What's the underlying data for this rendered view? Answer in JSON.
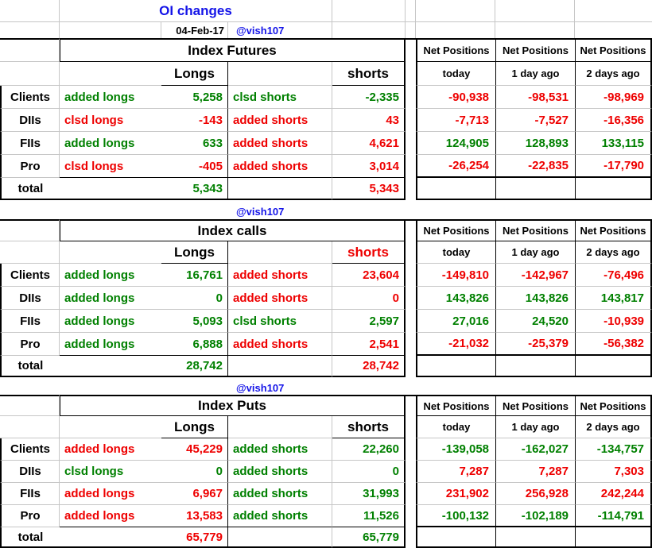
{
  "title": "OI changes",
  "date": "04-Feb-17",
  "handle": "@vish107",
  "colors": {
    "green": "#008000",
    "red": "#ee0000",
    "blue": "#1414e8",
    "black": "#000000"
  },
  "net": {
    "header": "Net Positions",
    "cols": [
      "today",
      "1 day ago",
      "2 days ago"
    ]
  },
  "sections": [
    {
      "title": "Index Futures",
      "longs_header": "Longs",
      "shorts_header": "shorts",
      "shorts_header_color": "black",
      "total_label": "total",
      "total_longs": "5,343",
      "total_longs_color": "green",
      "total_shorts": "5,343",
      "total_shorts_color": "red",
      "rows": [
        {
          "label": "Clients",
          "long_action": "added longs",
          "long_color": "green",
          "long_value": "5,258",
          "short_action": "clsd shorts",
          "short_color": "green",
          "short_value": "-2,335",
          "net": [
            "-90,938",
            "-98,531",
            "-98,969"
          ],
          "net_colors": [
            "red",
            "red",
            "red"
          ]
        },
        {
          "label": "DIIs",
          "long_action": "clsd longs",
          "long_color": "red",
          "long_value": "-143",
          "short_action": "added shorts",
          "short_color": "red",
          "short_value": "43",
          "net": [
            "-7,713",
            "-7,527",
            "-16,356"
          ],
          "net_colors": [
            "red",
            "red",
            "red"
          ]
        },
        {
          "label": "FIIs",
          "long_action": "added longs",
          "long_color": "green",
          "long_value": "633",
          "short_action": "added shorts",
          "short_color": "red",
          "short_value": "4,621",
          "net": [
            "124,905",
            "128,893",
            "133,115"
          ],
          "net_colors": [
            "green",
            "green",
            "green"
          ]
        },
        {
          "label": "Pro",
          "long_action": "clsd longs",
          "long_color": "red",
          "long_value": "-405",
          "short_action": "added shorts",
          "short_color": "red",
          "short_value": "3,014",
          "net": [
            "-26,254",
            "-22,835",
            "-17,790"
          ],
          "net_colors": [
            "red",
            "red",
            "red"
          ]
        }
      ]
    },
    {
      "title": "Index calls",
      "longs_header": "Longs",
      "shorts_header": "shorts",
      "shorts_header_color": "red",
      "total_label": "total",
      "total_longs": "28,742",
      "total_longs_color": "green",
      "total_shorts": "28,742",
      "total_shorts_color": "red",
      "rows": [
        {
          "label": "Clients",
          "long_action": "added longs",
          "long_color": "green",
          "long_value": "16,761",
          "short_action": "added shorts",
          "short_color": "red",
          "short_value": "23,604",
          "net": [
            "-149,810",
            "-142,967",
            "-76,496"
          ],
          "net_colors": [
            "red",
            "red",
            "red"
          ]
        },
        {
          "label": "DIIs",
          "long_action": "added longs",
          "long_color": "green",
          "long_value": "0",
          "short_action": "added shorts",
          "short_color": "red",
          "short_value": "0",
          "net": [
            "143,826",
            "143,826",
            "143,817"
          ],
          "net_colors": [
            "green",
            "green",
            "green"
          ]
        },
        {
          "label": "FIIs",
          "long_action": "added longs",
          "long_color": "green",
          "long_value": "5,093",
          "short_action": "clsd shorts",
          "short_color": "green",
          "short_value": "2,597",
          "net": [
            "27,016",
            "24,520",
            "-10,939"
          ],
          "net_colors": [
            "green",
            "green",
            "red"
          ]
        },
        {
          "label": "Pro",
          "long_action": "added longs",
          "long_color": "green",
          "long_value": "6,888",
          "short_action": "added shorts",
          "short_color": "red",
          "short_value": "2,541",
          "net": [
            "-21,032",
            "-25,379",
            "-56,382"
          ],
          "net_colors": [
            "red",
            "red",
            "red"
          ]
        }
      ]
    },
    {
      "title": "Index Puts",
      "longs_header": "Longs",
      "shorts_header": "shorts",
      "shorts_header_color": "black",
      "total_label": "total",
      "total_longs": "65,779",
      "total_longs_color": "red",
      "total_shorts": "65,779",
      "total_shorts_color": "green",
      "rows": [
        {
          "label": "Clients",
          "long_action": "added longs",
          "long_color": "red",
          "long_value": "45,229",
          "short_action": "added shorts",
          "short_color": "green",
          "short_value": "22,260",
          "net": [
            "-139,058",
            "-162,027",
            "-134,757"
          ],
          "net_colors": [
            "green",
            "green",
            "green"
          ]
        },
        {
          "label": "DIIs",
          "long_action": "clsd longs",
          "long_color": "green",
          "long_value": "0",
          "short_action": "added shorts",
          "short_color": "green",
          "short_value": "0",
          "net": [
            "7,287",
            "7,287",
            "7,303"
          ],
          "net_colors": [
            "red",
            "red",
            "red"
          ]
        },
        {
          "label": "FIIs",
          "long_action": "added longs",
          "long_color": "red",
          "long_value": "6,967",
          "short_action": "added shorts",
          "short_color": "green",
          "short_value": "31,993",
          "net": [
            "231,902",
            "256,928",
            "242,244"
          ],
          "net_colors": [
            "red",
            "red",
            "red"
          ]
        },
        {
          "label": "Pro",
          "long_action": "added longs",
          "long_color": "red",
          "long_value": "13,583",
          "short_action": "added shorts",
          "short_color": "green",
          "short_value": "11,526",
          "net": [
            "-100,132",
            "-102,189",
            "-114,791"
          ],
          "net_colors": [
            "green",
            "green",
            "green"
          ]
        }
      ]
    }
  ]
}
